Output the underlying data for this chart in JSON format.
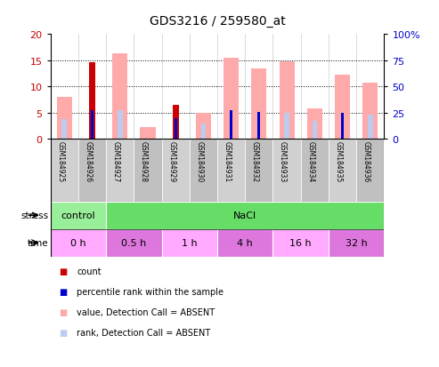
{
  "title": "GDS3216 / 259580_at",
  "samples": [
    "GSM184925",
    "GSM184926",
    "GSM184927",
    "GSM184928",
    "GSM184929",
    "GSM184930",
    "GSM184931",
    "GSM184932",
    "GSM184933",
    "GSM184934",
    "GSM184935",
    "GSM184936"
  ],
  "value_absent": [
    8.0,
    null,
    16.4,
    2.2,
    null,
    5.0,
    15.4,
    13.5,
    14.8,
    5.9,
    12.3,
    10.7
  ],
  "rank_absent": [
    3.8,
    null,
    5.5,
    null,
    null,
    3.0,
    null,
    null,
    5.0,
    3.5,
    null,
    4.7
  ],
  "count": [
    null,
    14.6,
    null,
    null,
    6.5,
    null,
    null,
    null,
    null,
    null,
    null,
    null
  ],
  "percentile_rank": [
    null,
    5.4,
    null,
    null,
    3.9,
    null,
    5.4,
    5.2,
    null,
    null,
    5.0,
    null
  ],
  "ylim_left": [
    0,
    20
  ],
  "ylim_right": [
    0,
    100
  ],
  "yticks_left": [
    0,
    5,
    10,
    15,
    20
  ],
  "yticks_right": [
    0,
    25,
    50,
    75,
    100
  ],
  "ytick_labels_right": [
    "0",
    "25",
    "50",
    "75",
    "100%"
  ],
  "color_count": "#cc0000",
  "color_percentile": "#0000cc",
  "color_value_absent": "#ffaaaa",
  "color_rank_absent": "#bbccee",
  "stress_groups": [
    {
      "label": "control",
      "start": 0,
      "end": 2,
      "color": "#99ee99"
    },
    {
      "label": "NaCl",
      "start": 2,
      "end": 12,
      "color": "#66dd66"
    }
  ],
  "time_groups": [
    {
      "label": "0 h",
      "start": 0,
      "end": 2,
      "color": "#ffaaff"
    },
    {
      "label": "0.5 h",
      "start": 2,
      "end": 4,
      "color": "#dd77dd"
    },
    {
      "label": "1 h",
      "start": 4,
      "end": 6,
      "color": "#ffaaff"
    },
    {
      "label": "4 h",
      "start": 6,
      "end": 8,
      "color": "#dd77dd"
    },
    {
      "label": "16 h",
      "start": 8,
      "end": 10,
      "color": "#ffaaff"
    },
    {
      "label": "32 h",
      "start": 10,
      "end": 12,
      "color": "#dd77dd"
    }
  ],
  "color_tick_left": "#cc0000",
  "color_tick_right": "#0000cc",
  "legend_items": [
    {
      "color": "#cc0000",
      "label": "count"
    },
    {
      "color": "#0000cc",
      "label": "percentile rank within the sample"
    },
    {
      "color": "#ffaaaa",
      "label": "value, Detection Call = ABSENT"
    },
    {
      "color": "#bbccee",
      "label": "rank, Detection Call = ABSENT"
    }
  ]
}
